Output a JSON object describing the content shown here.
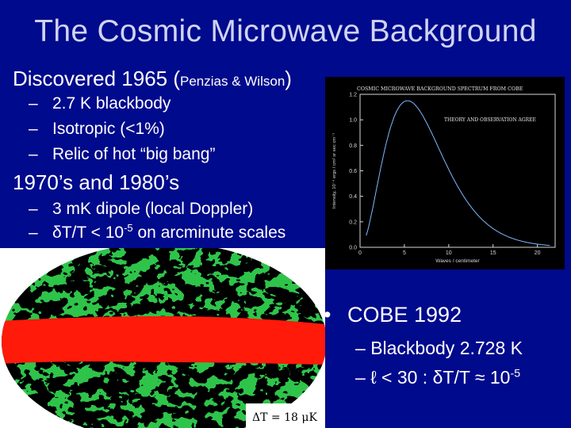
{
  "slide": {
    "title": "The Cosmic Microwave Background",
    "discovered": {
      "text": "Discovered 1965 (",
      "names": "Penzias & Wilson",
      "close": ")"
    },
    "bullets_1965": [
      {
        "dash": "–",
        "text": "2.7 K blackbody"
      },
      {
        "dash": "–",
        "text": "Isotropic (<1%)"
      },
      {
        "dash": "–",
        "text": "Relic of hot “big bang”"
      }
    ],
    "era": "1970’s and 1980’s",
    "dipole": {
      "dash": "–",
      "text": "3 mK dipole (local Doppler)"
    },
    "aniso": {
      "dash": "–",
      "pre": "δT/T < 10",
      "exp": "-5",
      "post": " on arcminute scales"
    },
    "cobe": {
      "bullet": "•",
      "text": "COBE 1992"
    },
    "blackbody": {
      "dash": "–",
      "text": "Blackbody 2.728 K"
    },
    "ell": {
      "dash": "–",
      "pre": "ℓ < 30 : δT/T ≈ 10",
      "exp": "-5"
    }
  },
  "map": {
    "scale_label": "ΔT = 18 μK"
  },
  "chart_data": {
    "type": "line",
    "title": "COSMIC MICROWAVE BACKGROUND SPECTRUM FROM COBE",
    "annotation": "THEORY AND OBSERVATION AGREE",
    "xlabel": "Waves / centimeter",
    "ylabel": "Intensity, 10⁻⁴ ergs / cm² sr sec cm⁻¹",
    "xlim": [
      0,
      22
    ],
    "ylim": [
      0,
      1.2
    ],
    "x_ticks": [
      0,
      5,
      10,
      15,
      20
    ],
    "y_ticks": [
      0.0,
      0.2,
      0.4,
      0.6,
      0.8,
      1.0,
      1.2
    ],
    "temperature_K": 2.728,
    "grid": false,
    "colors": {
      "curve": "#7fb8ff",
      "axes": "#d8d8d8",
      "background": "#000000"
    }
  }
}
